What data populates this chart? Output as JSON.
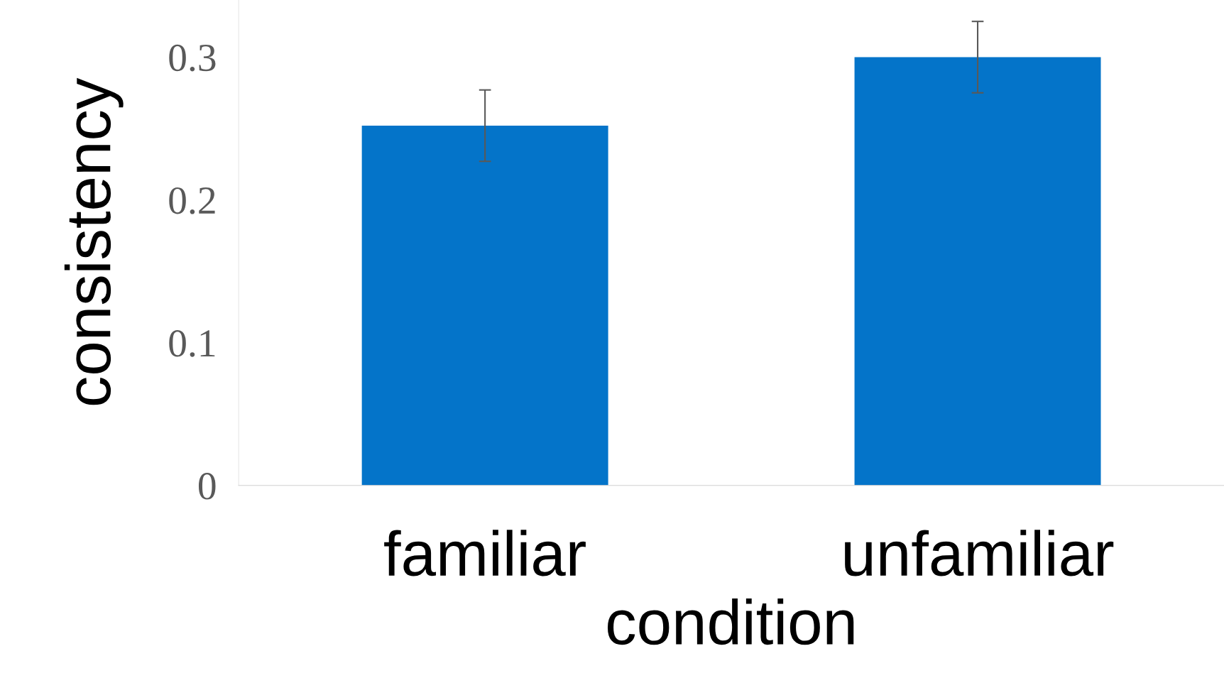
{
  "chart_data": {
    "type": "bar",
    "xlabel": "condition",
    "ylabel": "consistency",
    "categories": [
      "familiar",
      "unfamiliar"
    ],
    "values": [
      0.252,
      0.3
    ],
    "errors": [
      0.025,
      0.025
    ],
    "color": "#0474c9",
    "ylim": [
      0,
      0.34
    ],
    "yticks": [
      0,
      0.1,
      0.2,
      0.3
    ],
    "grid": false
  }
}
